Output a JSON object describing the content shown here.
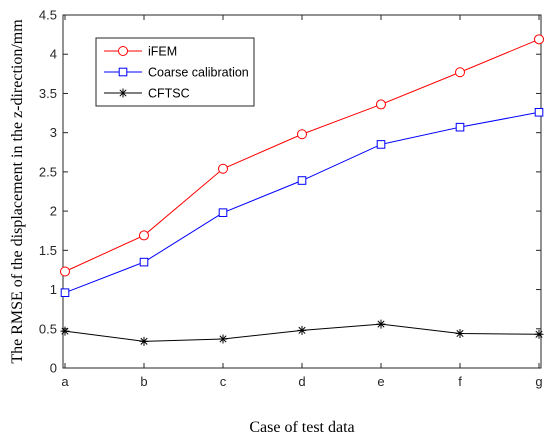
{
  "chart_data": {
    "type": "line",
    "categories": [
      "a",
      "b",
      "c",
      "d",
      "e",
      "f",
      "g"
    ],
    "xlabel": "Case of test data",
    "ylabel": "The RMSE of the displacement in the z-direction/mm",
    "ylim": [
      0,
      4.5
    ],
    "yticks": [
      "0",
      "0.5",
      "1",
      "1.5",
      "2",
      "2.5",
      "3",
      "3.5",
      "4",
      "4.5"
    ],
    "legend_position": "top-left",
    "grid": false,
    "series": [
      {
        "name": "iFEM",
        "color": "#ff0000",
        "marker": "circle",
        "values": [
          1.23,
          1.69,
          2.54,
          2.98,
          3.36,
          3.77,
          4.19
        ]
      },
      {
        "name": "Coarse calibration",
        "color": "#0000ff",
        "marker": "square",
        "values": [
          0.96,
          1.35,
          1.98,
          2.39,
          2.85,
          3.07,
          3.26
        ]
      },
      {
        "name": "CFTSC",
        "color": "#000000",
        "marker": "asterisk",
        "values": [
          0.47,
          0.34,
          0.37,
          0.48,
          0.56,
          0.44,
          0.43
        ]
      }
    ]
  }
}
